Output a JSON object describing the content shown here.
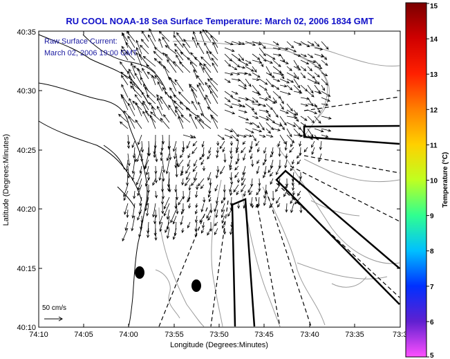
{
  "title": "RU COOL  NOAA-18  Sea Surface Temperature:  March 02, 2006 1834 GMT",
  "annotation": {
    "line1": "Raw Surface Current:",
    "line2": "March 02, 2006 19:00 GMT"
  },
  "scale_label": "50 cm/s",
  "chart_data": {
    "type": "map",
    "xlabel": "Longitude (Degrees:Minutes)",
    "ylabel": "Latitude (Degrees:Minutes)",
    "x_ticks": [
      "74:10",
      "74:05",
      "74:00",
      "73:55",
      "73:50",
      "73:45",
      "73:40",
      "73:35",
      "73:3"
    ],
    "y_ticks": [
      "40:35",
      "40:30",
      "40:25",
      "40:20",
      "40:15",
      "40:10"
    ],
    "colorbar": {
      "label": "Temperature (°C)",
      "range": [
        5,
        15
      ],
      "ticks": [
        "15",
        "14",
        "13",
        "12",
        "11",
        "10",
        "9",
        "8",
        "7",
        "6",
        "5"
      ]
    },
    "markers": [
      {
        "name": "buoy",
        "lon": -73.98,
        "lat": 40.245
      },
      {
        "name": "buoy",
        "lon": -73.87,
        "lat": 40.23
      }
    ]
  },
  "colors": {
    "title": "#1010c8",
    "annotation": "#1a1aa0",
    "coast": "#000000",
    "contour": "#9a9a9a"
  }
}
